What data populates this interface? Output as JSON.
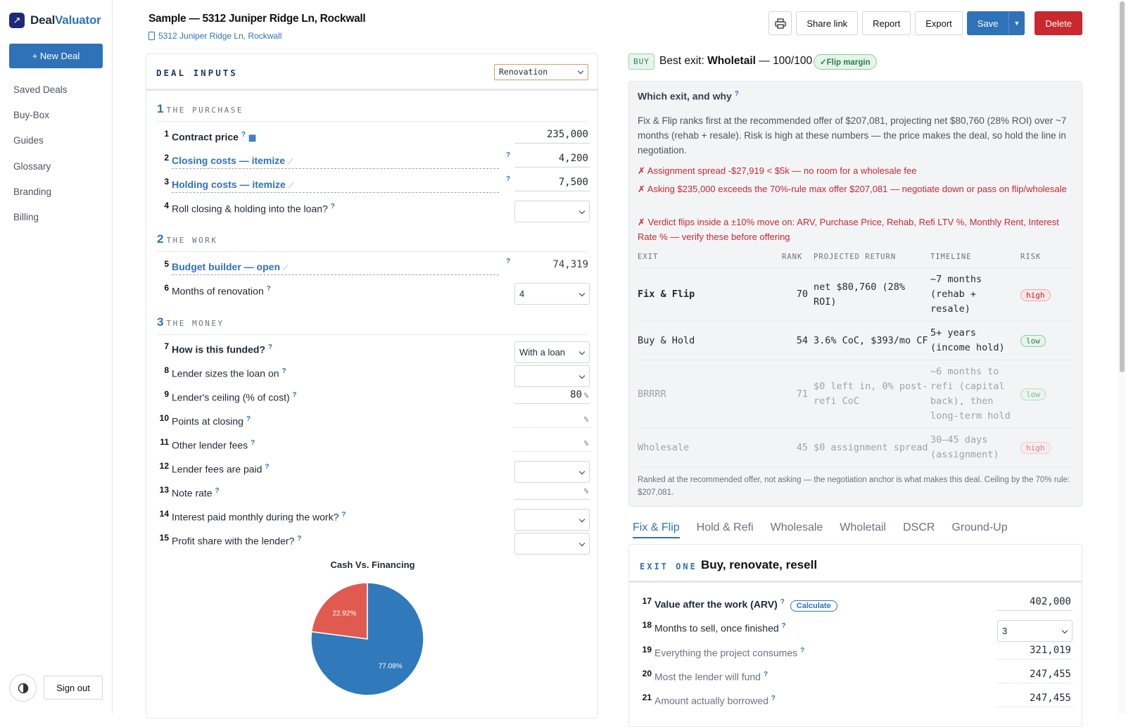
{
  "app": {
    "brand_a": "Deal",
    "brand_b": "Valuator",
    "new_deal": "+ New Deal"
  },
  "nav": [
    "Saved Deals",
    "Buy-Box",
    "Guides",
    "Glossary",
    "Branding",
    "Billing"
  ],
  "sign_out": "Sign out",
  "header": {
    "title": "Sample — 5312 Juniper Ridge Ln, Rockwall",
    "address": "5312 Juniper Ridge Ln, Rockwall",
    "share": "Share link",
    "report": "Report",
    "export": "Export",
    "save": "Save",
    "delete": "Delete"
  },
  "inputs": {
    "title": "DEAL INPUTS",
    "mode": "Renovation",
    "sections": [
      {
        "n": "1",
        "t": "THE PURCHASE"
      },
      {
        "n": "2",
        "t": "THE WORK"
      },
      {
        "n": "3",
        "t": "THE MONEY"
      }
    ],
    "rows": [
      {
        "n": "1",
        "label": "Contract price",
        "value": "235,000"
      },
      {
        "n": "2",
        "label": "Closing costs — itemize",
        "value": "4,200"
      },
      {
        "n": "3",
        "label": "Holding costs — itemize",
        "value": "7,500"
      },
      {
        "n": "4",
        "label": "Roll closing & holding into the loan?",
        "value": ""
      },
      {
        "n": "5",
        "label": "Budget builder — open",
        "value": "74,319"
      },
      {
        "n": "6",
        "label": "Months of renovation",
        "value": "4"
      },
      {
        "n": "7",
        "label": "How is this funded?",
        "value": "With a loan"
      },
      {
        "n": "8",
        "label": "Lender sizes the loan on",
        "value": ""
      },
      {
        "n": "9",
        "label": "Lender's ceiling (% of cost)",
        "value": "80"
      },
      {
        "n": "10",
        "label": "Points at closing",
        "value": ""
      },
      {
        "n": "11",
        "label": "Other lender fees",
        "value": ""
      },
      {
        "n": "12",
        "label": "Lender fees are paid",
        "value": ""
      },
      {
        "n": "13",
        "label": "Note rate",
        "value": ""
      },
      {
        "n": "14",
        "label": "Interest paid monthly during the work?",
        "value": ""
      },
      {
        "n": "15",
        "label": "Profit share with the lender?",
        "value": ""
      }
    ],
    "pct": "%"
  },
  "chart_data": {
    "type": "pie",
    "title": "Cash Vs. Financing",
    "slices": [
      {
        "value": 22.92,
        "label": "22.92%",
        "color": "#e05a4f"
      },
      {
        "value": 77.08,
        "label": "77.08%",
        "color": "#3079ba"
      }
    ]
  },
  "verdict": {
    "badge": "BUY",
    "prefix": "Best exit: ",
    "exit": "Wholetail",
    "suffix": " — 100/100",
    "flip": "✓Flip margin"
  },
  "why": {
    "heading": "Which exit, and why",
    "para": "Fix & Flip ranks first at the recommended offer of $207,081, projecting net $80,760 (28% ROI) over ~7 months (rehab + resale). Risk is high at these numbers — the price makes the deal, so hold the line in negotiation.",
    "warnings": [
      "✗ Assignment spread -$27,919 < $5k — no room for a wholesale fee",
      "✗ Asking $235,000 exceeds the 70%-rule max offer $207,081 — negotiate down or pass on flip/wholesale",
      "✗ Verdict flips inside a ±10% move on: ARV, Purchase Price, Rehab, Refi LTV %, Monthly Rent, Interest Rate % — verify these before offering"
    ],
    "cols": [
      "EXIT",
      "RANK",
      "PROJECTED RETURN",
      "TIMELINE",
      "RISK"
    ],
    "rows": [
      {
        "exit": "Fix & Flip",
        "rank": "70",
        "ret": "net $80,760 (28% ROI)",
        "time": "~7 months (rehab + resale)",
        "risk": "high"
      },
      {
        "exit": "Buy & Hold",
        "rank": "54",
        "ret": "3.6% CoC, $393/mo CF",
        "time": "5+ years (income hold)",
        "risk": "low"
      },
      {
        "exit": "BRRRR",
        "rank": "71",
        "ret": "$0 left in, 0% post-refi CoC",
        "time": "~6 months to refi (capital back), then long-term hold",
        "risk": "low"
      },
      {
        "exit": "Wholesale",
        "rank": "45",
        "ret": "$0 assignment spread",
        "time": "30–45 days (assignment)",
        "risk": "high"
      }
    ],
    "foot": "Ranked at the recommended offer, not asking — the negotiation anchor is what makes this deal. Ceiling by the 70% rule: $207,081."
  },
  "tabs": [
    "Fix & Flip",
    "Hold & Refi",
    "Wholesale",
    "Wholetail",
    "DSCR",
    "Ground-Up"
  ],
  "exit": {
    "label": "EXIT ONE",
    "title": "Buy, renovate, resell",
    "calc": "Calculate",
    "rows": [
      {
        "n": "17",
        "label": "Value after the work (ARV)",
        "value": "402,000"
      },
      {
        "n": "18",
        "label": "Months to sell, once finished",
        "value": "3"
      },
      {
        "n": "19",
        "label": "Everything the project consumes",
        "value": "321,019"
      },
      {
        "n": "20",
        "label": "Most the lender will fund",
        "value": "247,455"
      },
      {
        "n": "21",
        "label": "Amount actually borrowed",
        "value": "247,455"
      }
    ]
  }
}
